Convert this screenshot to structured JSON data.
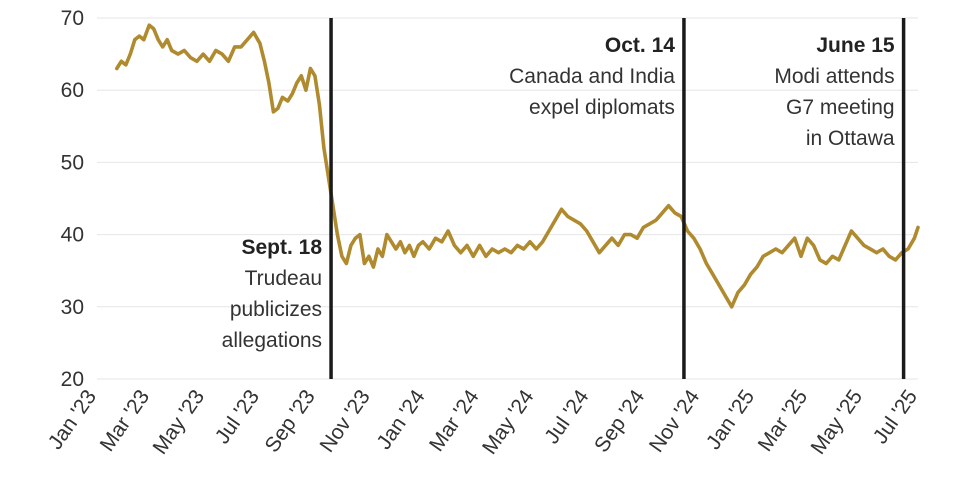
{
  "chart_data": {
    "type": "line",
    "title": "",
    "xlabel": "",
    "ylabel": "",
    "ylim": [
      20,
      70
    ],
    "xlim": [
      "2023-01-01",
      "2025-07-01"
    ],
    "yticks": [
      20,
      30,
      40,
      50,
      60,
      70
    ],
    "xticks": [
      {
        "date": "2023-01-01",
        "label": "Jan '23"
      },
      {
        "date": "2023-03-01",
        "label": "Mar '23"
      },
      {
        "date": "2023-05-01",
        "label": "May '23"
      },
      {
        "date": "2023-07-01",
        "label": "Jul '23"
      },
      {
        "date": "2023-09-01",
        "label": "Sep '23"
      },
      {
        "date": "2023-11-01",
        "label": "Nov '23"
      },
      {
        "date": "2024-01-01",
        "label": "Jan '24"
      },
      {
        "date": "2024-03-01",
        "label": "Mar '24"
      },
      {
        "date": "2024-05-01",
        "label": "May '24"
      },
      {
        "date": "2024-07-01",
        "label": "Jul '24"
      },
      {
        "date": "2024-09-01",
        "label": "Sep '24"
      },
      {
        "date": "2024-11-01",
        "label": "Nov '24"
      },
      {
        "date": "2025-01-01",
        "label": "Jan '25"
      },
      {
        "date": "2025-03-01",
        "label": "Mar '25"
      },
      {
        "date": "2025-05-01",
        "label": "May '25"
      },
      {
        "date": "2025-07-01",
        "label": "Jul '25"
      }
    ],
    "grid": true,
    "series": [
      {
        "color": "#b08a2e",
        "points": [
          [
            "2023-01-23",
            63
          ],
          [
            "2023-01-28",
            64
          ],
          [
            "2023-02-02",
            63.5
          ],
          [
            "2023-02-07",
            65
          ],
          [
            "2023-02-12",
            67
          ],
          [
            "2023-02-17",
            67.5
          ],
          [
            "2023-02-22",
            67
          ],
          [
            "2023-02-28",
            69
          ],
          [
            "2023-03-05",
            68.5
          ],
          [
            "2023-03-10",
            67
          ],
          [
            "2023-03-15",
            66
          ],
          [
            "2023-03-20",
            67
          ],
          [
            "2023-03-25",
            65.5
          ],
          [
            "2023-04-01",
            65
          ],
          [
            "2023-04-08",
            65.5
          ],
          [
            "2023-04-15",
            64.5
          ],
          [
            "2023-04-22",
            64
          ],
          [
            "2023-04-29",
            65
          ],
          [
            "2023-05-06",
            64
          ],
          [
            "2023-05-13",
            65.5
          ],
          [
            "2023-05-20",
            65
          ],
          [
            "2023-05-27",
            64
          ],
          [
            "2023-06-03",
            66
          ],
          [
            "2023-06-10",
            66
          ],
          [
            "2023-06-17",
            67
          ],
          [
            "2023-06-24",
            68
          ],
          [
            "2023-07-01",
            66.5
          ],
          [
            "2023-07-06",
            64
          ],
          [
            "2023-07-11",
            61
          ],
          [
            "2023-07-16",
            57
          ],
          [
            "2023-07-21",
            57.5
          ],
          [
            "2023-07-26",
            59
          ],
          [
            "2023-08-01",
            58.5
          ],
          [
            "2023-08-06",
            59.5
          ],
          [
            "2023-08-11",
            61
          ],
          [
            "2023-08-16",
            62
          ],
          [
            "2023-08-21",
            60
          ],
          [
            "2023-08-26",
            63
          ],
          [
            "2023-08-31",
            62
          ],
          [
            "2023-09-05",
            58
          ],
          [
            "2023-09-10",
            52
          ],
          [
            "2023-09-15",
            48
          ],
          [
            "2023-09-20",
            44
          ],
          [
            "2023-09-25",
            40
          ],
          [
            "2023-09-30",
            37
          ],
          [
            "2023-10-05",
            36
          ],
          [
            "2023-10-10",
            38.5
          ],
          [
            "2023-10-15",
            39.5
          ],
          [
            "2023-10-20",
            40
          ],
          [
            "2023-10-25",
            36
          ],
          [
            "2023-10-30",
            37
          ],
          [
            "2023-11-04",
            35.5
          ],
          [
            "2023-11-09",
            38
          ],
          [
            "2023-11-14",
            37
          ],
          [
            "2023-11-19",
            40
          ],
          [
            "2023-11-24",
            39
          ],
          [
            "2023-11-29",
            38
          ],
          [
            "2023-12-04",
            39
          ],
          [
            "2023-12-09",
            37.5
          ],
          [
            "2023-12-14",
            38.5
          ],
          [
            "2023-12-19",
            37
          ],
          [
            "2023-12-24",
            38.5
          ],
          [
            "2023-12-29",
            39
          ],
          [
            "2024-01-05",
            38
          ],
          [
            "2024-01-12",
            39.5
          ],
          [
            "2024-01-19",
            39
          ],
          [
            "2024-01-26",
            40.5
          ],
          [
            "2024-02-02",
            38.5
          ],
          [
            "2024-02-09",
            37.5
          ],
          [
            "2024-02-16",
            38.5
          ],
          [
            "2024-02-23",
            37
          ],
          [
            "2024-03-01",
            38.5
          ],
          [
            "2024-03-08",
            37
          ],
          [
            "2024-03-15",
            38
          ],
          [
            "2024-03-22",
            37.5
          ],
          [
            "2024-03-29",
            38
          ],
          [
            "2024-04-05",
            37.5
          ],
          [
            "2024-04-12",
            38.5
          ],
          [
            "2024-04-19",
            38
          ],
          [
            "2024-04-26",
            39
          ],
          [
            "2024-05-03",
            38
          ],
          [
            "2024-05-10",
            39
          ],
          [
            "2024-05-17",
            40.5
          ],
          [
            "2024-05-24",
            42
          ],
          [
            "2024-05-31",
            43.5
          ],
          [
            "2024-06-07",
            42.5
          ],
          [
            "2024-06-14",
            42
          ],
          [
            "2024-06-21",
            41.5
          ],
          [
            "2024-06-28",
            40.5
          ],
          [
            "2024-07-05",
            39
          ],
          [
            "2024-07-12",
            37.5
          ],
          [
            "2024-07-19",
            38.5
          ],
          [
            "2024-07-26",
            39.5
          ],
          [
            "2024-08-02",
            38.5
          ],
          [
            "2024-08-09",
            40
          ],
          [
            "2024-08-16",
            40
          ],
          [
            "2024-08-23",
            39.5
          ],
          [
            "2024-08-30",
            41
          ],
          [
            "2024-09-06",
            41.5
          ],
          [
            "2024-09-13",
            42
          ],
          [
            "2024-09-20",
            43
          ],
          [
            "2024-09-27",
            44
          ],
          [
            "2024-10-04",
            43
          ],
          [
            "2024-10-11",
            42.5
          ],
          [
            "2024-10-18",
            40.5
          ],
          [
            "2024-10-25",
            39.5
          ],
          [
            "2024-11-01",
            38
          ],
          [
            "2024-11-08",
            36
          ],
          [
            "2024-11-15",
            34.5
          ],
          [
            "2024-11-22",
            33
          ],
          [
            "2024-11-29",
            31.5
          ],
          [
            "2024-12-06",
            30
          ],
          [
            "2024-12-13",
            32
          ],
          [
            "2024-12-20",
            33
          ],
          [
            "2024-12-27",
            34.5
          ],
          [
            "2025-01-03",
            35.5
          ],
          [
            "2025-01-10",
            37
          ],
          [
            "2025-01-17",
            37.5
          ],
          [
            "2025-01-24",
            38
          ],
          [
            "2025-01-31",
            37.5
          ],
          [
            "2025-02-07",
            38.5
          ],
          [
            "2025-02-14",
            39.5
          ],
          [
            "2025-02-21",
            37
          ],
          [
            "2025-02-28",
            39.5
          ],
          [
            "2025-03-07",
            38.5
          ],
          [
            "2025-03-14",
            36.5
          ],
          [
            "2025-03-21",
            36
          ],
          [
            "2025-03-28",
            37
          ],
          [
            "2025-04-04",
            36.5
          ],
          [
            "2025-04-11",
            38.5
          ],
          [
            "2025-04-18",
            40.5
          ],
          [
            "2025-04-25",
            39.5
          ],
          [
            "2025-05-02",
            38.5
          ],
          [
            "2025-05-09",
            38
          ],
          [
            "2025-05-16",
            37.5
          ],
          [
            "2025-05-23",
            38
          ],
          [
            "2025-05-30",
            37
          ],
          [
            "2025-06-06",
            36.5
          ],
          [
            "2025-06-13",
            37.5
          ],
          [
            "2025-06-20",
            38
          ],
          [
            "2025-06-27",
            39.5
          ],
          [
            "2025-07-01",
            41
          ]
        ]
      }
    ],
    "annotations": [
      {
        "date": "2023-09-18",
        "title": "Sept. 18",
        "lines": [
          "Trudeau",
          "publicizes",
          "allegations"
        ],
        "side": "left",
        "align": "bottom"
      },
      {
        "date": "2024-10-14",
        "title": "Oct. 14",
        "lines": [
          "Canada and India",
          "expel diplomats"
        ],
        "side": "left",
        "align": "top"
      },
      {
        "date": "2025-06-15",
        "title": "June 15",
        "lines": [
          "Modi attends",
          "G7 meeting",
          "in Ottawa"
        ],
        "side": "left",
        "align": "top"
      }
    ]
  }
}
